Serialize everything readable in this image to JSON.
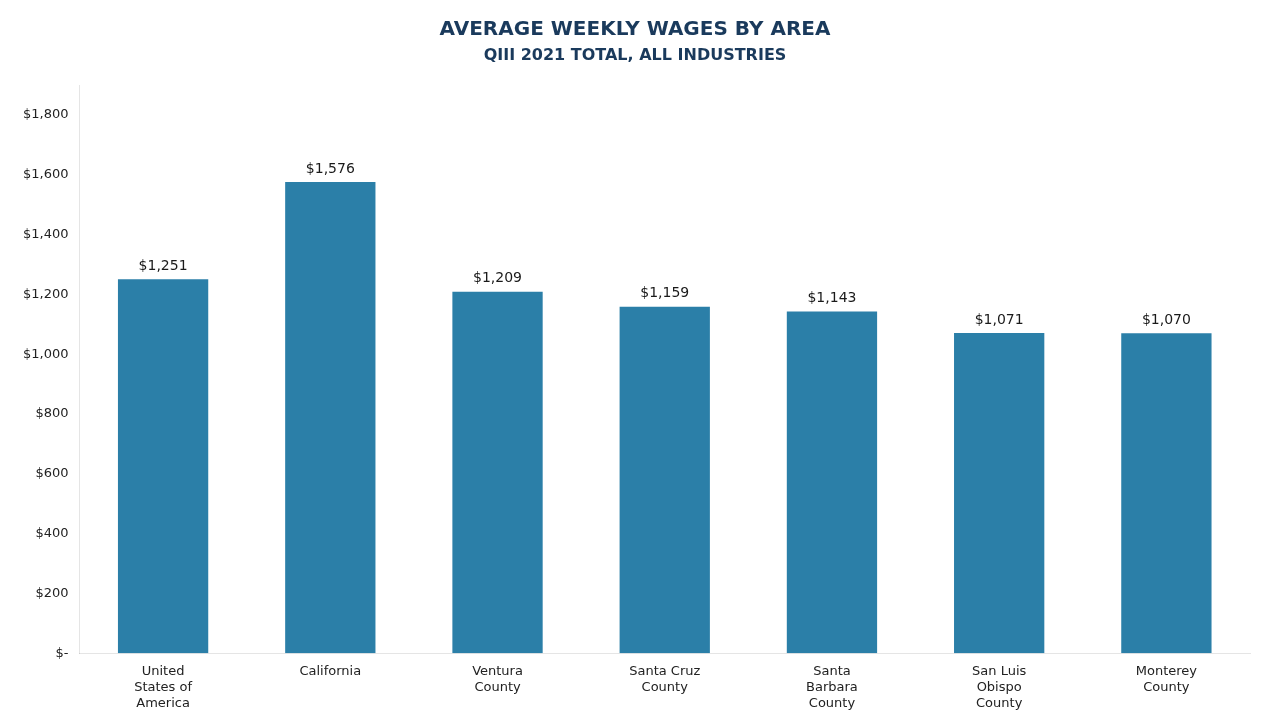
{
  "chart_data": {
    "type": "bar",
    "title": "AVERAGE WEEKLY WAGES BY AREA",
    "subtitle": "QIII 2021 TOTAL, ALL INDUSTRIES",
    "categories": [
      "United\nStates of\nAmerica",
      "California",
      "Ventura\nCounty",
      "Santa Cruz\nCounty",
      "Santa\nBarbara\nCounty",
      "San Luis\nObispo\nCounty",
      "Monterey\nCounty"
    ],
    "values": [
      1251,
      1576,
      1209,
      1159,
      1143,
      1071,
      1070
    ],
    "value_labels": [
      "$1,251",
      "$1,576",
      "$1,209",
      "$1,159",
      "$1,143",
      "$1,071",
      "$1,070"
    ],
    "data_labels": true,
    "color": "#2b7fa8",
    "ylim": [
      0,
      1900
    ],
    "yticks": [
      {
        "value": 0,
        "label": "$-"
      },
      {
        "value": 200,
        "label": "$200"
      },
      {
        "value": 400,
        "label": "$400"
      },
      {
        "value": 600,
        "label": "$600"
      },
      {
        "value": 800,
        "label": "$800"
      },
      {
        "value": 1000,
        "label": "$1,000"
      },
      {
        "value": 1200,
        "label": "$1,200"
      },
      {
        "value": 1400,
        "label": "$1,400"
      },
      {
        "value": 1600,
        "label": "$1,600"
      },
      {
        "value": 1800,
        "label": "$1,800"
      }
    ],
    "grid": false
  }
}
